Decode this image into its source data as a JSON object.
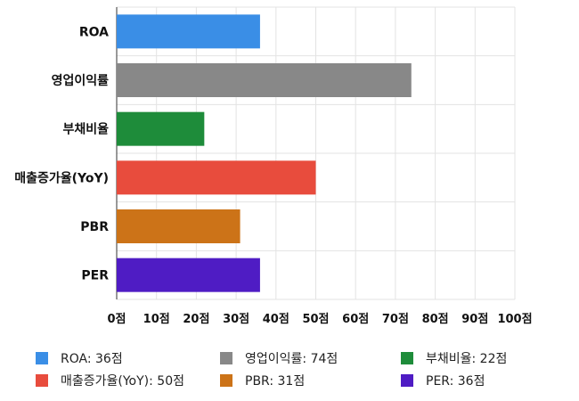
{
  "chart_data": {
    "type": "bar",
    "orientation": "horizontal",
    "categories": [
      "ROA",
      "영업이익률",
      "부채비율",
      "매출증가율(YoY)",
      "PBR",
      "PER"
    ],
    "values": [
      36,
      74,
      22,
      50,
      31,
      36
    ],
    "colors": [
      "#3a8ee6",
      "#888888",
      "#1e8c3a",
      "#e84c3d",
      "#cc7318",
      "#4f1cc4"
    ],
    "xlim": [
      0,
      100
    ],
    "xticks": [
      "0점",
      "10점",
      "20점",
      "30점",
      "40점",
      "50점",
      "60점",
      "70점",
      "80점",
      "90점",
      "100점"
    ],
    "grid": true,
    "legend_position": "bottom",
    "legend": [
      {
        "label": "ROA: 36점",
        "color": "#3a8ee6"
      },
      {
        "label": "영업이익률: 74점",
        "color": "#888888"
      },
      {
        "label": "부채비율: 22점",
        "color": "#1e8c3a"
      },
      {
        "label": "매출증가율(YoY): 50점",
        "color": "#e84c3d"
      },
      {
        "label": "PBR: 31점",
        "color": "#cc7318"
      },
      {
        "label": "PER: 36점",
        "color": "#4f1cc4"
      }
    ]
  }
}
